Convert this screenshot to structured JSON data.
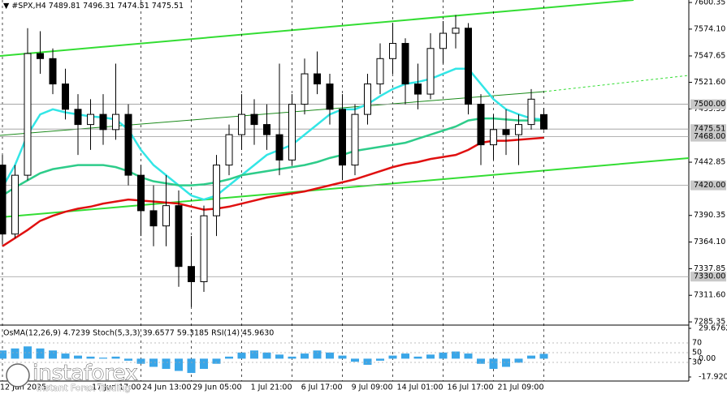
{
  "chart_data": {
    "type": "candlestick",
    "title": "#SPX,H4",
    "categories": [
      "12 Jun 2025",
      null,
      null,
      null,
      null,
      null,
      null,
      null,
      null,
      null,
      null,
      "17 Jun 17:00",
      null,
      null,
      null,
      "24 Jun 13:00",
      null,
      null,
      null,
      "29 Jun 05:00",
      null,
      null,
      null,
      "1 Jul 21:00",
      null,
      null,
      null,
      "6 Jul 17:00",
      null,
      null,
      null,
      "9 Jul 09:00",
      null,
      null,
      null,
      "14 Jul 01:00",
      null,
      null,
      null,
      "16 Jul 17:00",
      null,
      null,
      null,
      "21 Jul 09:00"
    ],
    "open": [
      7440,
      7372,
      7430,
      7550,
      7545,
      7520,
      7495,
      7480,
      7490,
      7475,
      7490,
      7430,
      7395,
      7380,
      7400,
      7340,
      7325,
      7390,
      7440,
      7470,
      7490,
      7480,
      7470,
      7445,
      7500,
      7530,
      7520,
      7495,
      7440,
      7490,
      7520,
      7545,
      7560,
      7520,
      7510,
      7555,
      7570,
      7575,
      7500,
      7460,
      7475,
      7470,
      7480,
      7489.81
    ],
    "high": [
      7450,
      7440,
      7575,
      7572,
      7555,
      7535,
      7510,
      7505,
      7510,
      7540,
      7500,
      7440,
      7420,
      7430,
      7415,
      7370,
      7400,
      7450,
      7480,
      7510,
      7505,
      7500,
      7540,
      7510,
      7545,
      7552,
      7530,
      7510,
      7500,
      7530,
      7560,
      7580,
      7565,
      7540,
      7570,
      7582,
      7588,
      7580,
      7510,
      7490,
      7495,
      7490,
      7515,
      7496.31
    ],
    "low": [
      7362,
      7368,
      7425,
      7530,
      7510,
      7485,
      7450,
      7455,
      7460,
      7465,
      7420,
      7370,
      7360,
      7360,
      7320,
      7300,
      7315,
      7370,
      7430,
      7455,
      7460,
      7455,
      7430,
      7440,
      7490,
      7510,
      7480,
      7425,
      7430,
      7480,
      7510,
      7530,
      7500,
      7495,
      7505,
      7540,
      7555,
      7490,
      7440,
      7445,
      7450,
      7440,
      7475,
      7474.51
    ],
    "close": [
      7372,
      7430,
      7550,
      7545,
      7520,
      7495,
      7480,
      7490,
      7475,
      7490,
      7430,
      7395,
      7380,
      7400,
      7340,
      7325,
      7390,
      7440,
      7470,
      7490,
      7480,
      7470,
      7445,
      7500,
      7530,
      7520,
      7495,
      7440,
      7490,
      7520,
      7545,
      7560,
      7520,
      7510,
      7555,
      7570,
      7575,
      7500,
      7460,
      7475,
      7470,
      7480,
      7505,
      7475.51
    ],
    "series": [
      {
        "color": "#33e6e6",
        "values": [
          7418,
          7440,
          7470,
          7490,
          7495,
          7492,
          7490,
          7488,
          7487,
          7485,
          7475,
          7455,
          7440,
          7430,
          7420,
          7410,
          7406,
          7410,
          7420,
          7430,
          7440,
          7450,
          7455,
          7460,
          7470,
          7480,
          7490,
          7495,
          7495,
          7500,
          7508,
          7515,
          7520,
          7522,
          7525,
          7530,
          7535,
          7535,
          7520,
          7505,
          7495,
          7490,
          7486,
          7485
        ]
      },
      {
        "color": "#2ecc8a",
        "values": [
          7410,
          7418,
          7425,
          7432,
          7436,
          7438,
          7440,
          7440,
          7440,
          7438,
          7434,
          7428,
          7424,
          7422,
          7420,
          7420,
          7421,
          7423,
          7426,
          7430,
          7432,
          7434,
          7436,
          7438,
          7440,
          7443,
          7447,
          7450,
          7454,
          7456,
          7458,
          7460,
          7462,
          7466,
          7470,
          7474,
          7478,
          7484,
          7486,
          7486,
          7485,
          7484,
          7484,
          7484
        ]
      },
      {
        "color": "#e01010",
        "values": [
          7360,
          7368,
          7376,
          7385,
          7390,
          7394,
          7397,
          7399,
          7402,
          7404,
          7406,
          7405,
          7404,
          7403,
          7402,
          7399,
          7396,
          7397,
          7399,
          7402,
          7405,
          7408,
          7410,
          7412,
          7414,
          7417,
          7420,
          7423,
          7426,
          7430,
          7434,
          7438,
          7441,
          7443,
          7446,
          7448,
          7450,
          7455,
          7462,
          7464,
          7464,
          7465,
          7466,
          7467
        ]
      }
    ],
    "ylim": [
      7283,
      7602.8
    ],
    "yticks": [
      7600.35,
      {
        "value": 7574.1,
        "label": "7574.10"
      },
      7547.65,
      {
        "value": 7521.6,
        "label": "7521.60"
      },
      7495.35,
      7442.85,
      7390.35,
      {
        "value": 7364.1,
        "label": "7364.10"
      },
      7337.85,
      {
        "value": 7311.6,
        "label": "7311.60"
      },
      7285.35
    ],
    "levels": [
      {
        "value": 7500,
        "label": "7500.00"
      },
      {
        "value": 7475.51,
        "label": "7475.51"
      },
      {
        "value": 7468,
        "label": "7468.00"
      },
      {
        "value": 7420,
        "label": "7420.00"
      },
      {
        "value": 7330,
        "label": "7330.00"
      }
    ],
    "indicator_label": "OsMA(12,26,9) 4.7239  Stoch(5,3,3) 39.6577 59.3185  RSI(14) 45.9630",
    "osma": [
      8,
      10,
      12,
      10,
      8,
      5,
      3,
      2,
      1,
      2,
      -2,
      -5,
      -8,
      -10,
      -12,
      -14,
      -10,
      -5,
      2,
      6,
      8,
      6,
      4,
      2,
      5,
      8,
      6,
      3,
      -3,
      -6,
      -2,
      3,
      5,
      2,
      4,
      6,
      7,
      5,
      -5,
      -10,
      -8,
      -4,
      3,
      4.7239
    ],
    "osma_color": "#3aa6e8",
    "osma_ylim": [
      -17.9209,
      29.6762
    ],
    "osma_ticks": [
      29.6762,
      {
        "value": 0,
        "label": "0.00"
      },
      -17.9209
    ],
    "osc_ylim": [
      0,
      100
    ],
    "osc_ticks": [
      70,
      50,
      30
    ],
    "watermark": "instaforex",
    "watermark_sub": "Instant Forex Trading"
  }
}
